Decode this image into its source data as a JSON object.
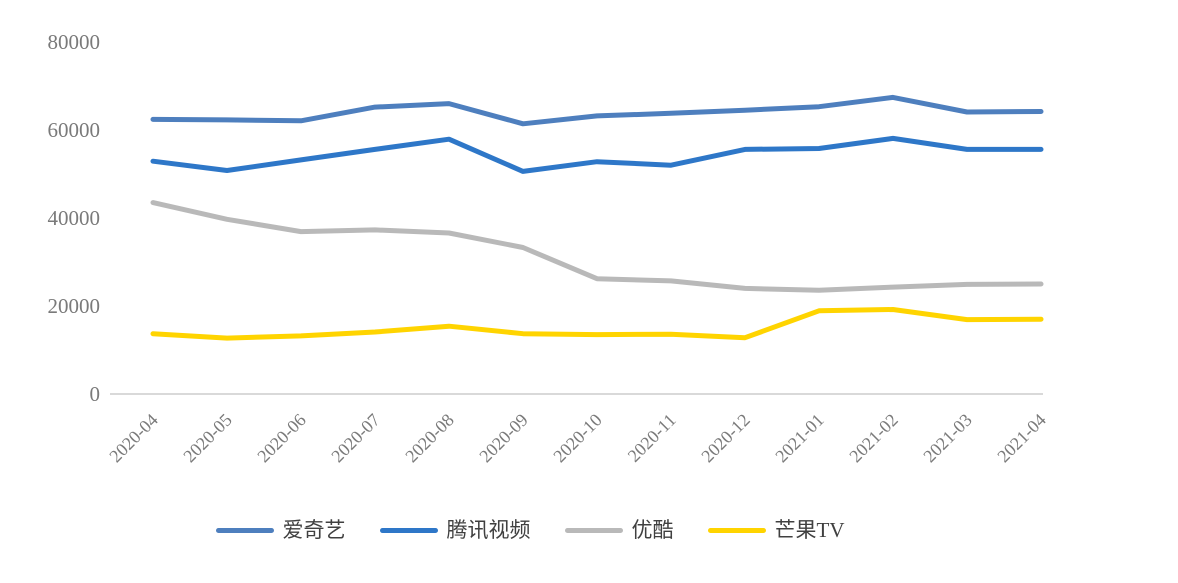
{
  "chart_data": {
    "type": "line",
    "title": "",
    "xlabel": "",
    "ylabel": "",
    "categories": [
      "2020-04",
      "2020-05",
      "2020-06",
      "2020-07",
      "2020-08",
      "2020-09",
      "2020-10",
      "2020-11",
      "2020-12",
      "2021-01",
      "2021-02",
      "2021-03",
      "2021-04"
    ],
    "series": [
      {
        "id": "iqiyi",
        "name": "爱奇艺",
        "color": "#4e7fbe",
        "values": [
          62400,
          62300,
          62100,
          65200,
          66000,
          61400,
          63200,
          63800,
          64500,
          65300,
          67400,
          64100,
          64200
        ]
      },
      {
        "id": "tencent-video",
        "name": "腾讯视频",
        "color": "#2e77c8",
        "values": [
          52900,
          50800,
          53200,
          55600,
          57900,
          50600,
          52800,
          52000,
          55600,
          55800,
          58100,
          55600,
          55600
        ]
      },
      {
        "id": "youku",
        "name": "优酷",
        "color": "#b9b9b9",
        "values": [
          43500,
          39700,
          36900,
          37300,
          36600,
          33300,
          26200,
          25700,
          24000,
          23600,
          24300,
          24900,
          25000
        ]
      },
      {
        "id": "mango-tv",
        "name": "芒果TV",
        "color": "#ffd400",
        "values": [
          13700,
          12700,
          13200,
          14100,
          15400,
          13700,
          13500,
          13600,
          12800,
          18900,
          19200,
          16900,
          17000
        ]
      }
    ],
    "ylim": [
      0,
      80000
    ],
    "yticks": [
      0,
      20000,
      40000,
      60000,
      80000
    ],
    "grid": false,
    "legend_position": "bottom",
    "colors": {
      "axis_line": "#d9d9d9",
      "tick_label": "#7a7a7a",
      "legend_text": "#404040",
      "background": "#ffffff"
    }
  }
}
